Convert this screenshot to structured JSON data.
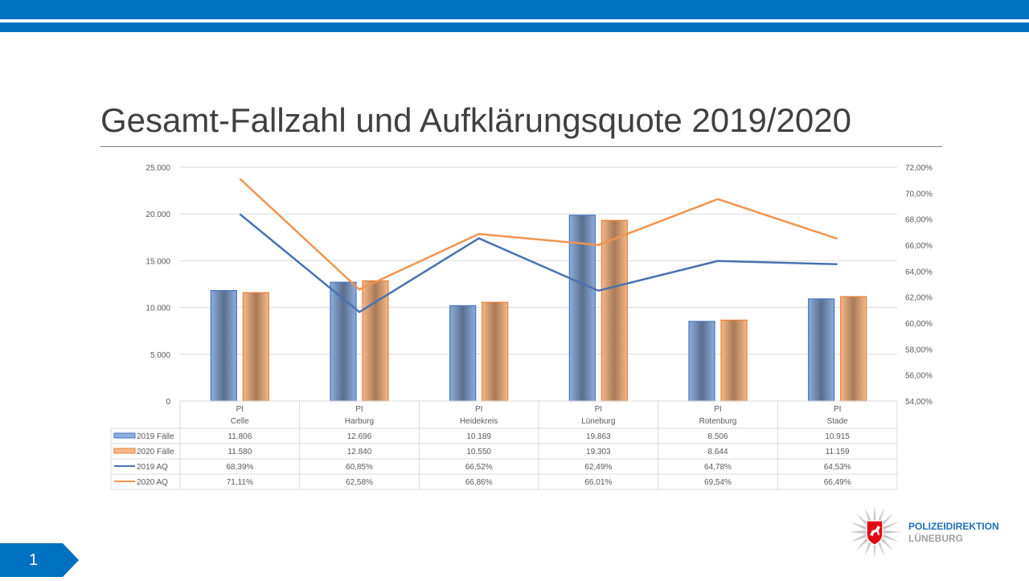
{
  "slide": {
    "title": "Gesamt-Fallzahl und Aufklärungsquote 2019/2020",
    "page_number": "1",
    "logo_line1": "POLIZEIDIREKTION",
    "logo_line2": "LÜNEBURG",
    "accent": "#0070C0"
  },
  "chart_data": {
    "type": "bar+line",
    "title": "Gesamt-Fallzahl und Aufklärungsquote 2019/2020",
    "categories": [
      [
        "PI",
        "Celle"
      ],
      [
        "PI",
        "Harburg"
      ],
      [
        "PI",
        "Heidekreis"
      ],
      [
        "PI",
        "Lüneburg"
      ],
      [
        "PI",
        "Rotenburg"
      ],
      [
        "PI",
        "Stade"
      ]
    ],
    "y_left": {
      "ticks": [
        "0",
        "5.000",
        "10.000",
        "15.000",
        "20.000",
        "25.000"
      ],
      "range": [
        0,
        25000
      ]
    },
    "y_right": {
      "ticks": [
        "54,00%",
        "56,00%",
        "58,00%",
        "60,00%",
        "62,00%",
        "64,00%",
        "66,00%",
        "68,00%",
        "70,00%",
        "72,00%"
      ],
      "range": [
        54,
        72
      ]
    },
    "grid": true,
    "legend": "data-table",
    "series": [
      {
        "name": "2019 Fälle",
        "type": "bar",
        "axis": "left",
        "color": "#4472C4",
        "fill": "#8eaedb",
        "values": [
          11806,
          12696,
          10189,
          19863,
          8506,
          10915
        ],
        "labels": [
          "11.806",
          "12.696",
          "10.189",
          "19.863",
          "8.506",
          "10.915"
        ]
      },
      {
        "name": "2020 Fälle",
        "type": "bar",
        "axis": "left",
        "color": "#ED7D31",
        "fill": "#f6b98a",
        "values": [
          11580,
          12840,
          10550,
          19303,
          8644,
          11159
        ],
        "labels": [
          "11.580",
          "12.840",
          "10.550",
          "19.303",
          "8.644",
          "11.159"
        ]
      },
      {
        "name": "2019 AQ",
        "type": "line",
        "axis": "right",
        "color": "#4a72b0",
        "values": [
          68.39,
          60.85,
          66.52,
          62.49,
          64.78,
          64.53
        ],
        "labels": [
          "68,39%",
          "60,85%",
          "66,52%",
          "62,49%",
          "64,78%",
          "64,53%"
        ]
      },
      {
        "name": "2020 AQ",
        "type": "line",
        "axis": "right",
        "color": "#f0944f",
        "values": [
          71.11,
          62.58,
          66.86,
          66.01,
          69.54,
          66.49
        ],
        "labels": [
          "71,11%",
          "62,58%",
          "66,86%",
          "66,01%",
          "69,54%",
          "66,49%"
        ]
      }
    ]
  }
}
